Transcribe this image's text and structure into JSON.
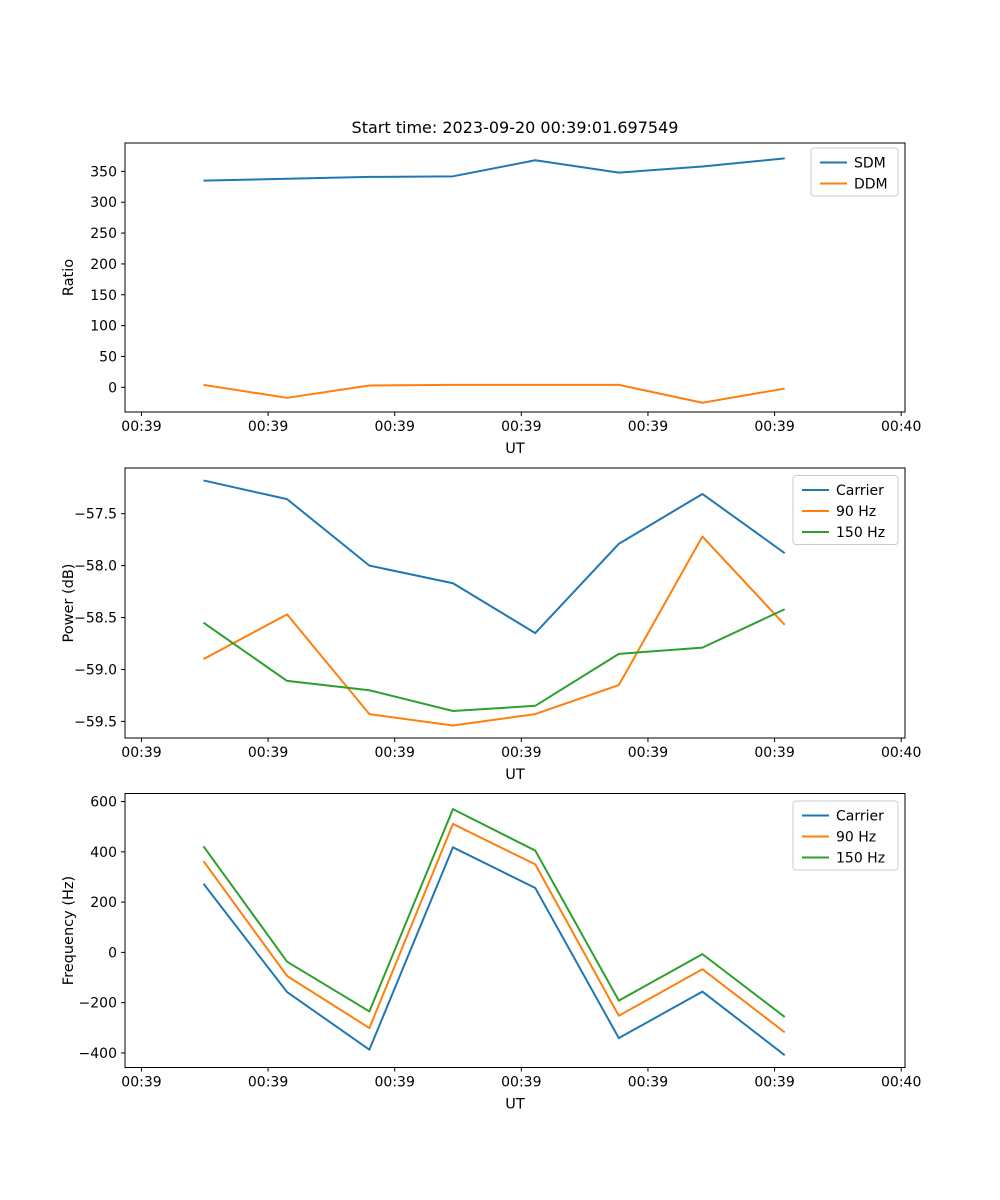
{
  "figure": {
    "title": "Start time: 2023-09-20 00:39:01.697549",
    "background": "#ffffff"
  },
  "colors": {
    "blue": "#1f77b4",
    "orange": "#ff7f0e",
    "green": "#2ca02c",
    "spine": "#000000",
    "legend_edge": "#cccccc",
    "legend_bg": "rgba(255,255,255,0.85)"
  },
  "x_axis": {
    "label": "UT",
    "xlim": [
      -1.3,
      60.3
    ],
    "tick_t": [
      0,
      10,
      20,
      30,
      40,
      50,
      60
    ],
    "tick_labels": [
      "00:39",
      "00:39",
      "00:39",
      "00:39",
      "00:39",
      "00:39",
      "00:40"
    ],
    "data_t": [
      4.9,
      11.5,
      18.0,
      24.6,
      31.1,
      37.7,
      44.3,
      50.8
    ]
  },
  "chart_data": [
    {
      "id": "ratio",
      "type": "line",
      "title": "",
      "ylabel": "Ratio",
      "xlabel": "UT",
      "ylim": [
        -40,
        396
      ],
      "grid": false,
      "legend_position": "upper-right",
      "ytick_values": [
        350,
        300,
        250,
        200,
        150,
        100,
        50,
        0
      ],
      "ytick_labels": [
        "350",
        "300",
        "250",
        "200",
        "150",
        "100",
        "50",
        "0"
      ],
      "series": [
        {
          "name": "SDM",
          "color_key": "blue",
          "values": [
            335,
            338,
            341,
            342,
            368,
            348,
            358,
            371
          ]
        },
        {
          "name": "DDM",
          "color_key": "orange",
          "values": [
            4,
            -17,
            3,
            4,
            4,
            4,
            -25,
            -2
          ]
        }
      ]
    },
    {
      "id": "power",
      "type": "line",
      "title": "",
      "ylabel": "Power (dB)",
      "xlabel": "UT",
      "ylim": [
        -59.66,
        -57.06
      ],
      "grid": false,
      "legend_position": "upper-right",
      "ytick_values": [
        -57.5,
        -58.0,
        -58.5,
        -59.0,
        -59.5
      ],
      "ytick_labels": [
        "−57.5",
        "−58.0",
        "−58.5",
        "−59.0",
        "−59.5"
      ],
      "series": [
        {
          "name": "Carrier",
          "color_key": "blue",
          "values": [
            -57.18,
            -57.36,
            -58.0,
            -58.17,
            -58.65,
            -57.79,
            -57.31,
            -57.88
          ]
        },
        {
          "name": "90 Hz",
          "color_key": "orange",
          "values": [
            -58.9,
            -58.47,
            -59.43,
            -59.54,
            -59.43,
            -59.15,
            -57.72,
            -58.57
          ]
        },
        {
          "name": "150 Hz",
          "color_key": "green",
          "values": [
            -58.55,
            -59.11,
            -59.2,
            -59.4,
            -59.35,
            -58.85,
            -58.79,
            -58.42
          ]
        }
      ]
    },
    {
      "id": "frequency",
      "type": "line",
      "title": "",
      "ylabel": "Frequency (Hz)",
      "xlabel": "UT",
      "ylim": [
        -458,
        632
      ],
      "grid": false,
      "legend_position": "upper-right",
      "ytick_values": [
        600,
        400,
        200,
        0,
        -200,
        -400
      ],
      "ytick_labels": [
        "600",
        "400",
        "200",
        "0",
        "−200",
        "−400"
      ],
      "series": [
        {
          "name": "Carrier",
          "color_key": "blue",
          "values": [
            273,
            -158,
            -387,
            418,
            256,
            -341,
            -156,
            -409
          ]
        },
        {
          "name": "90 Hz",
          "color_key": "orange",
          "values": [
            363,
            -94,
            -301,
            511,
            350,
            -252,
            -67,
            -318
          ]
        },
        {
          "name": "150 Hz",
          "color_key": "green",
          "values": [
            422,
            -37,
            -235,
            570,
            405,
            -192,
            -7,
            -257
          ]
        }
      ]
    }
  ]
}
